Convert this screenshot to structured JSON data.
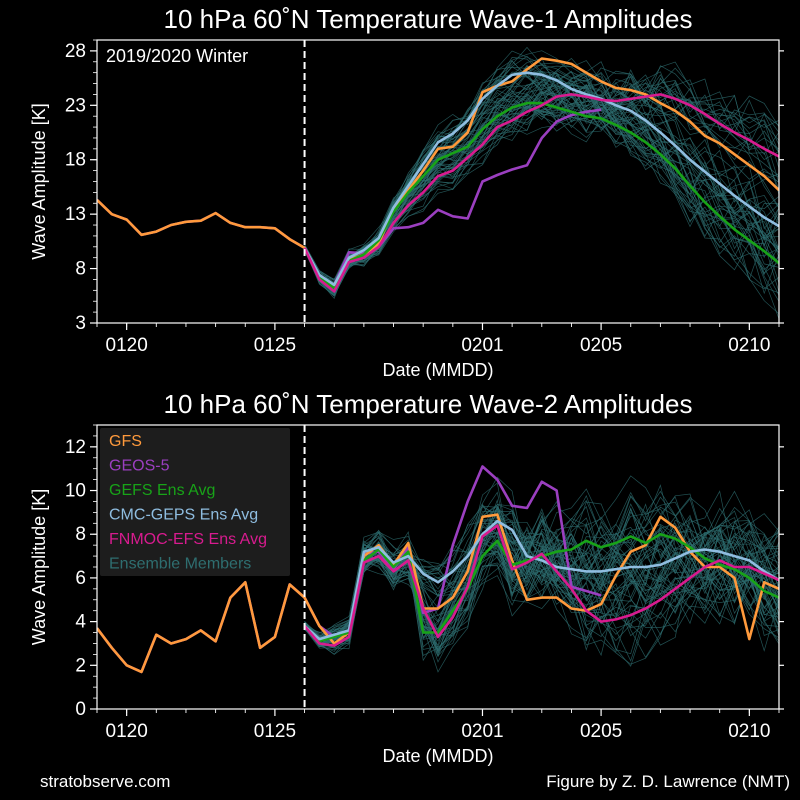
{
  "footer": {
    "left": "stratobserve.com",
    "right": "Figure by Z. D. Lawrence (NMT)"
  },
  "colors": {
    "GFS": "#ff9a3c",
    "GEOS-5": "#9b3fc0",
    "GEFS": "#18a318",
    "CMC": "#8fbde0",
    "FNMOC": "#d81b8f",
    "ENS": "#2e6e70"
  },
  "chart_data": [
    {
      "type": "line",
      "title": "10 hPa 60˚N   Temperature Wave-1 Amplitudes",
      "annotation": "2019/2020 Winter",
      "xlabel": "Date (MMDD)",
      "ylabel": "Wave Amplitude [K]",
      "x_ticks": [
        "0120",
        "0125",
        "0201",
        "0205",
        "0210"
      ],
      "x_tick_day": [
        20,
        25,
        32,
        36,
        41
      ],
      "xlim": [
        19,
        42
      ],
      "forecast_start_day": 26,
      "ylim": [
        3,
        29
      ],
      "y_ticks": [
        3,
        8,
        13,
        18,
        23,
        28
      ],
      "grid": false,
      "legend": "none",
      "series": [
        {
          "name": "GFS",
          "x": [
            19,
            19.5,
            20,
            20.5,
            21,
            21.5,
            22,
            22.5,
            23,
            23.5,
            24,
            24.5,
            25,
            25.5,
            26,
            26.5,
            27,
            27.5,
            28,
            28.5,
            29,
            29.5,
            30,
            30.5,
            31,
            31.5,
            32,
            32.5,
            33,
            33.5,
            34,
            34.5,
            35,
            35.5,
            36,
            36.5,
            37,
            37.5,
            38,
            38.5,
            39,
            39.5,
            40,
            40.5,
            41,
            41.5,
            42
          ],
          "y": [
            14.3,
            13.0,
            12.5,
            11.1,
            11.4,
            12.0,
            12.3,
            12.4,
            13.1,
            12.2,
            11.8,
            11.8,
            11.7,
            10.7,
            9.9,
            7.3,
            6.5,
            8.8,
            9.3,
            10.3,
            13.5,
            15.2,
            17.0,
            19.0,
            19.2,
            20.5,
            24.2,
            24.8,
            25.2,
            26.3,
            27.3,
            27.1,
            26.8,
            26.0,
            25.2,
            24.6,
            24.4,
            24.0,
            23.2,
            22.5,
            21.5,
            20.2,
            19.5,
            18.5,
            17.5,
            16.5,
            15.2
          ]
        },
        {
          "name": "GEOS-5",
          "x": [
            19,
            19.5,
            20,
            20.5,
            21,
            21.5,
            22,
            22.5,
            23,
            23.5,
            24,
            24.5,
            25,
            25.5,
            26,
            26.5,
            27,
            27.5,
            28,
            28.5,
            29,
            29.5,
            30,
            30.5,
            31,
            31.5,
            32,
            32.5,
            33,
            33.5,
            34,
            34.5,
            35,
            35.5,
            36
          ],
          "y": [
            14.3,
            13.0,
            12.5,
            11.1,
            11.4,
            12.0,
            12.3,
            12.4,
            13.1,
            12.2,
            11.8,
            11.8,
            11.7,
            10.7,
            9.9,
            7.3,
            6.5,
            9.5,
            9.4,
            10.0,
            11.7,
            11.8,
            12.2,
            13.4,
            12.8,
            12.6,
            16.0,
            16.6,
            17.1,
            17.5,
            20.0,
            21.5,
            22.1,
            22.4,
            22.6
          ]
        },
        {
          "name": "GEFS Ens Avg",
          "x": [
            26,
            26.5,
            27,
            27.5,
            28,
            28.5,
            29,
            29.5,
            30,
            30.5,
            31,
            31.5,
            32,
            32.5,
            33,
            33.5,
            34,
            34.5,
            35,
            35.5,
            36,
            36.5,
            37,
            37.5,
            38,
            38.5,
            39,
            39.5,
            40,
            40.5,
            41,
            41.5,
            42
          ],
          "y": [
            9.9,
            7.2,
            6.2,
            8.7,
            9.3,
            10.6,
            13.2,
            15.0,
            16.5,
            18.0,
            18.6,
            19.2,
            20.8,
            22.0,
            22.8,
            23.2,
            23.2,
            22.8,
            22.4,
            22.0,
            21.8,
            21.2,
            20.5,
            19.6,
            18.5,
            17.2,
            15.6,
            14.1,
            12.8,
            11.6,
            10.6,
            9.6,
            8.5
          ]
        },
        {
          "name": "CMC-GEPS Ens Avg",
          "x": [
            26,
            26.5,
            27,
            27.5,
            28,
            28.5,
            29,
            29.5,
            30,
            30.5,
            31,
            31.5,
            32,
            32.5,
            33,
            33.5,
            34,
            34.5,
            35,
            35.5,
            36,
            36.5,
            37,
            37.5,
            38,
            38.5,
            39,
            39.5,
            40,
            40.5,
            41,
            41.5,
            42
          ],
          "y": [
            9.9,
            7.4,
            6.5,
            9.0,
            9.7,
            10.8,
            13.6,
            15.6,
            17.6,
            19.6,
            20.4,
            21.6,
            23.6,
            24.8,
            25.8,
            26.0,
            25.8,
            25.3,
            24.5,
            24.0,
            23.6,
            23.0,
            22.5,
            21.6,
            20.5,
            19.3,
            18.0,
            16.9,
            15.8,
            14.7,
            13.7,
            12.7,
            11.9
          ]
        },
        {
          "name": "FNMOC-EFS Ens Avg",
          "x": [
            26,
            26.5,
            27,
            27.5,
            28,
            28.5,
            29,
            29.5,
            30,
            30.5,
            31,
            31.5,
            32,
            32.5,
            33,
            33.5,
            34,
            34.5,
            35,
            35.5,
            36,
            36.5,
            37,
            37.5,
            38,
            38.5,
            39,
            39.5,
            40,
            40.5,
            41,
            41.5,
            42
          ],
          "y": [
            9.9,
            7.0,
            5.9,
            8.6,
            9.0,
            10.0,
            12.2,
            13.8,
            15.0,
            16.5,
            17.0,
            18.2,
            19.4,
            21.0,
            21.6,
            22.4,
            23.0,
            23.8,
            24.0,
            23.8,
            23.5,
            23.4,
            23.6,
            23.8,
            24.0,
            23.6,
            23.0,
            22.2,
            21.3,
            20.5,
            19.8,
            19.0,
            18.3
          ]
        }
      ],
      "ensemble_envelope": {
        "x_start": 26,
        "x_end": 42
      }
    },
    {
      "type": "line",
      "title": "10 hPa 60˚N   Temperature Wave-2 Amplitudes",
      "xlabel": "Date (MMDD)",
      "ylabel": "Wave Amplitude [K]",
      "x_ticks": [
        "0120",
        "0125",
        "0201",
        "0205",
        "0210"
      ],
      "x_tick_day": [
        20,
        25,
        32,
        36,
        41
      ],
      "xlim": [
        19,
        42
      ],
      "forecast_start_day": 26,
      "ylim": [
        0,
        13
      ],
      "y_ticks": [
        0,
        2,
        4,
        6,
        8,
        10,
        12
      ],
      "grid": false,
      "legend": "top-left",
      "legend_entries": [
        "GFS",
        "GEOS-5",
        "GEFS Ens Avg",
        "CMC-GEPS Ens Avg",
        "FNMOC-EFS Ens Avg",
        "Ensemble Members"
      ],
      "series": [
        {
          "name": "GFS",
          "x": [
            19,
            19.5,
            20,
            20.5,
            21,
            21.5,
            22,
            22.5,
            23,
            23.5,
            24,
            24.5,
            25,
            25.5,
            26,
            26.5,
            27,
            27.5,
            28,
            28.5,
            29,
            29.5,
            30,
            30.5,
            31,
            31.5,
            32,
            32.5,
            33,
            33.5,
            34,
            34.5,
            35,
            35.5,
            36,
            36.5,
            37,
            37.5,
            38,
            38.5,
            39,
            39.5,
            40,
            40.5,
            41,
            41.5,
            42
          ],
          "y": [
            3.7,
            2.8,
            2.0,
            1.7,
            3.4,
            3.0,
            3.2,
            3.6,
            3.1,
            5.1,
            5.8,
            2.8,
            3.3,
            5.7,
            5.1,
            3.8,
            3.0,
            3.5,
            7.0,
            7.5,
            6.6,
            7.6,
            4.6,
            4.6,
            5.1,
            6.3,
            8.8,
            8.9,
            6.8,
            5.0,
            5.1,
            5.1,
            4.6,
            4.5,
            4.8,
            6.1,
            7.2,
            7.5,
            8.8,
            8.3,
            7.2,
            6.5,
            6.5,
            6.0,
            3.2,
            5.8,
            5.5
          ]
        },
        {
          "name": "GEOS-5",
          "x": [
            19,
            19.5,
            20,
            20.5,
            21,
            21.5,
            22,
            22.5,
            23,
            23.5,
            24,
            24.5,
            25,
            25.5,
            26,
            26.5,
            27,
            27.5,
            28,
            28.5,
            29,
            29.5,
            30,
            30.5,
            31,
            31.5,
            32,
            32.5,
            33,
            33.5,
            34,
            34.5,
            35,
            35.5,
            36
          ],
          "y": [
            3.7,
            2.8,
            2.0,
            1.7,
            3.4,
            3.0,
            3.2,
            3.6,
            3.1,
            5.1,
            5.8,
            2.8,
            3.3,
            5.7,
            5.1,
            3.8,
            3.3,
            3.6,
            7.1,
            7.2,
            6.4,
            7.4,
            4.4,
            4.6,
            7.5,
            9.5,
            11.1,
            10.5,
            9.3,
            9.2,
            10.4,
            10.0,
            5.6,
            5.4,
            5.2
          ]
        },
        {
          "name": "GEFS Ens Avg",
          "x": [
            26,
            26.5,
            27,
            27.5,
            28,
            28.5,
            29,
            29.5,
            30,
            30.5,
            31,
            31.5,
            32,
            32.5,
            33,
            33.5,
            34,
            34.5,
            35,
            35.5,
            36,
            36.5,
            37,
            37.5,
            38,
            38.5,
            39,
            39.5,
            40,
            40.5,
            41,
            41.5,
            42
          ],
          "y": [
            3.8,
            3.1,
            3.3,
            3.5,
            6.8,
            7.3,
            6.5,
            7.2,
            3.5,
            3.5,
            4.5,
            5.5,
            7.0,
            7.7,
            6.6,
            6.8,
            7.0,
            7.2,
            7.3,
            7.7,
            7.4,
            7.6,
            7.9,
            7.6,
            8.0,
            7.8,
            7.4,
            6.9,
            6.6,
            6.4,
            6.0,
            5.4,
            5.1
          ]
        },
        {
          "name": "CMC-GEPS Ens Avg",
          "x": [
            26,
            26.5,
            27,
            27.5,
            28,
            28.5,
            29,
            29.5,
            30,
            30.5,
            31,
            31.5,
            32,
            32.5,
            33,
            33.5,
            34,
            34.5,
            35,
            35.5,
            36,
            36.5,
            37,
            37.5,
            38,
            38.5,
            39,
            39.5,
            40,
            40.5,
            41,
            41.5,
            42
          ],
          "y": [
            3.8,
            3.2,
            3.4,
            3.6,
            7.2,
            7.4,
            6.7,
            7.0,
            6.2,
            5.8,
            6.3,
            7.0,
            8.0,
            8.6,
            8.2,
            7.0,
            6.8,
            6.5,
            6.4,
            6.3,
            6.3,
            6.4,
            6.5,
            6.5,
            6.6,
            6.9,
            7.2,
            7.3,
            7.2,
            7.0,
            6.8,
            6.3,
            5.9
          ]
        },
        {
          "name": "FNMOC-EFS Ens Avg",
          "x": [
            26,
            26.5,
            27,
            27.5,
            28,
            28.5,
            29,
            29.5,
            30,
            30.5,
            31,
            31.5,
            32,
            32.5,
            33,
            33.5,
            34,
            34.5,
            35,
            35.5,
            36,
            36.5,
            37,
            37.5,
            38,
            38.5,
            39,
            39.5,
            40,
            40.5,
            41,
            41.5,
            42
          ],
          "y": [
            3.8,
            3.0,
            2.9,
            3.3,
            6.7,
            7.0,
            6.3,
            6.8,
            4.6,
            3.3,
            4.2,
            5.6,
            7.9,
            8.4,
            6.4,
            6.7,
            7.1,
            6.3,
            5.5,
            4.5,
            4.0,
            4.1,
            4.3,
            4.6,
            5.0,
            5.5,
            6.0,
            6.5,
            6.8,
            6.5,
            6.5,
            6.2,
            5.9
          ]
        }
      ],
      "ensemble_envelope": {
        "x_start": 26,
        "x_end": 42
      }
    }
  ]
}
